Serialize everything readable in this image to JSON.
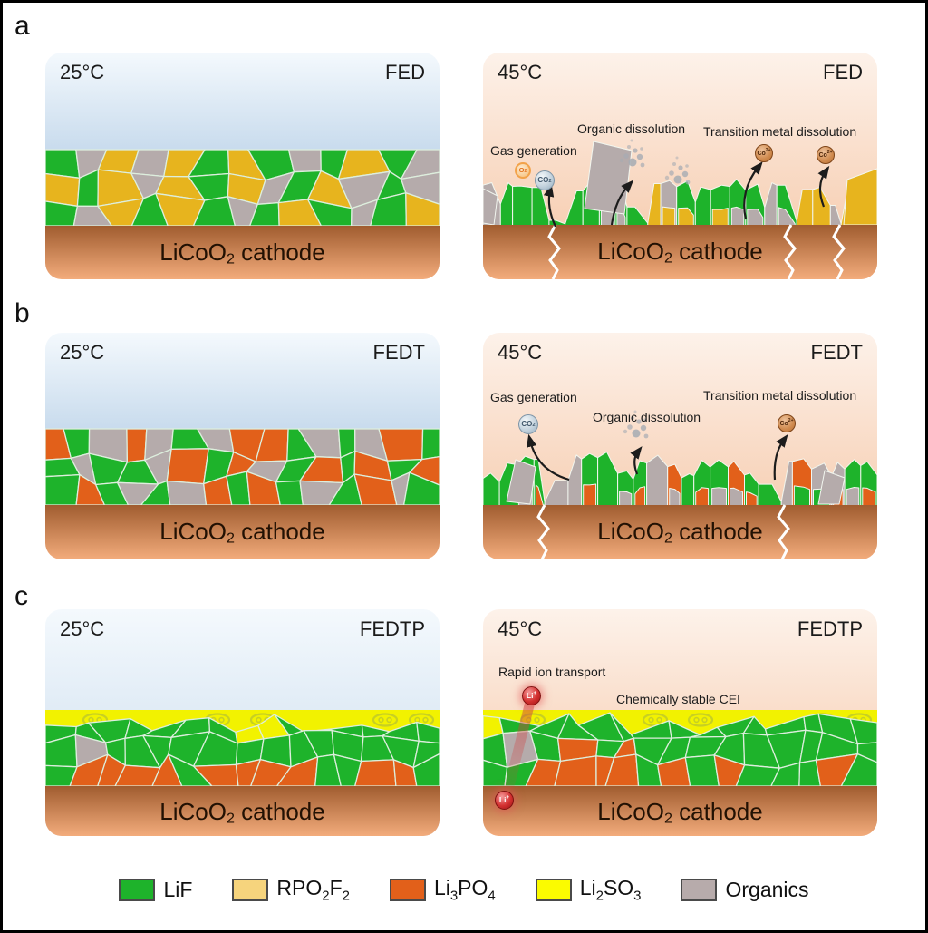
{
  "rows": [
    {
      "letter": "a",
      "left": {
        "temp": "25°C",
        "name": "FED"
      },
      "right": {
        "temp": "45°C",
        "name": "FED"
      }
    },
    {
      "letter": "b",
      "left": {
        "temp": "25°C",
        "name": "FEDT"
      },
      "right": {
        "temp": "45°C",
        "name": "FEDT"
      }
    },
    {
      "letter": "c",
      "left": {
        "temp": "25°C",
        "name": "FEDTP"
      },
      "right": {
        "temp": "45°C",
        "name": "FEDTP"
      }
    }
  ],
  "cathode_label": {
    "main": "LiCoO",
    "sub": "2",
    "rest": " cathode"
  },
  "ann": {
    "gas": "Gas generation",
    "organic": "Organic dissolution",
    "metal": "Transition metal dissolution",
    "rapid": "Rapid ion transport",
    "stable": "Chemically stable CEI"
  },
  "icons": {
    "o2": {
      "base": "O",
      "sub": "2"
    },
    "co2": {
      "base": "CO",
      "sub": "2"
    },
    "co_ion": {
      "base": "Co",
      "sup": "2+"
    },
    "li_ion": {
      "base": "Li",
      "sup": "+"
    }
  },
  "legend": {
    "items": [
      {
        "name": "LiF",
        "color": "#1eb32b",
        "segments": [
          {
            "t": "LiF"
          }
        ]
      },
      {
        "name": "RPO2F2",
        "color": "#f6d47d",
        "segments": [
          {
            "t": "RPO"
          },
          {
            "t": "2",
            "sub": true
          },
          {
            "t": "F"
          },
          {
            "t": "2",
            "sub": true
          }
        ]
      },
      {
        "name": "Li3PO4",
        "color": "#e2601a",
        "segments": [
          {
            "t": "Li"
          },
          {
            "t": "3",
            "sub": true
          },
          {
            "t": "PO"
          },
          {
            "t": "4",
            "sub": true
          }
        ]
      },
      {
        "name": "Li2SO3",
        "color": "#fbfb00",
        "segments": [
          {
            "t": "Li"
          },
          {
            "t": "2",
            "sub": true
          },
          {
            "t": "SO"
          },
          {
            "t": "3",
            "sub": true
          }
        ]
      },
      {
        "name": "Organics",
        "color": "#b7abab",
        "segments": [
          {
            "t": "Organics"
          }
        ]
      }
    ]
  },
  "colors": {
    "lif_green": "#1eb32b",
    "rpo2f2_gold": "#e7b41e",
    "li3po4_orange": "#e2601a",
    "li2so3_yellow": "#f2f200",
    "organics_gray": "#b5abab",
    "electrolyte_top": "#f4f9fd",
    "electrolyte_bottom": "#c8dbed",
    "heated_top": "#fdf2ea",
    "heated_bottom": "#f5c5a4",
    "cathode_top": "#a05c2f",
    "cathode_bottom": "#f3ac7c",
    "mosaic_stroke": "#ddeedd",
    "ring_motif": "#b9c52f",
    "bubble_gray": "#a6abb3",
    "arrow_black": "#1c1c1c",
    "crack_white": "#ffffff",
    "li_ion_red": "#d04040"
  }
}
